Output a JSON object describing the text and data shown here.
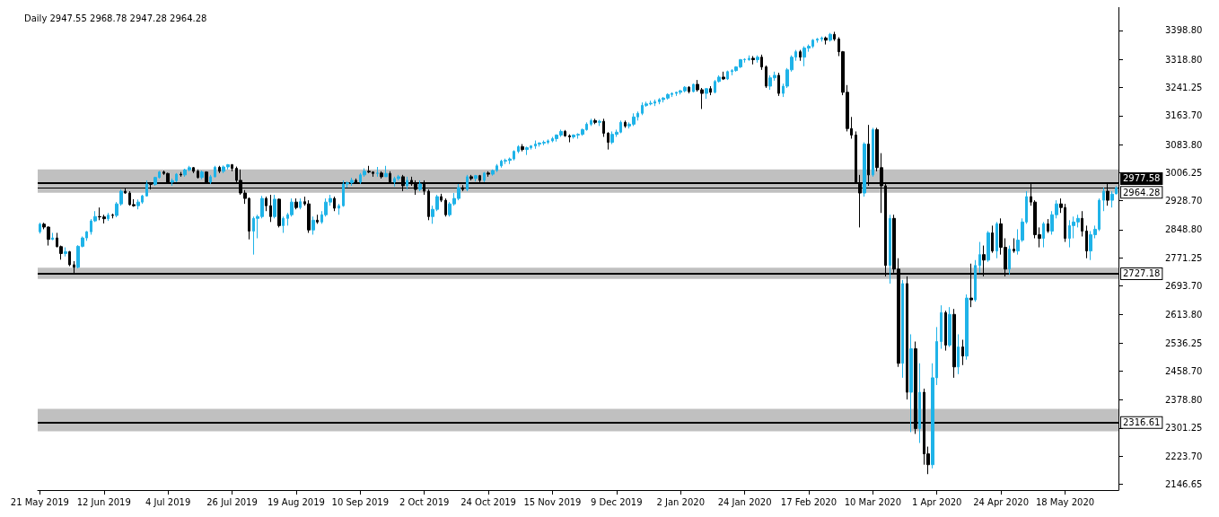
{
  "chart_data": {
    "type": "candlestick",
    "title": "Daily 2947.55 2968.78 2947.28 2964.28",
    "categories": [
      "21 May 2019",
      null,
      null,
      null,
      null,
      null,
      null,
      null,
      null,
      null,
      null,
      null,
      null,
      null,
      null,
      "12 Jun 2019",
      null,
      null,
      null,
      null,
      null,
      null,
      null,
      null,
      null,
      null,
      null,
      null,
      null,
      null,
      "4 Jul 2019",
      null,
      null,
      null,
      null,
      null,
      null,
      null,
      null,
      null,
      null,
      null,
      null,
      null,
      null,
      "26 Jul 2019",
      null,
      null,
      null,
      null,
      null,
      null,
      null,
      null,
      null,
      null,
      null,
      null,
      null,
      null,
      "19 Aug 2019",
      null,
      null,
      null,
      null,
      null,
      null,
      null,
      null,
      null,
      null,
      null,
      null,
      null,
      null,
      "10 Sep 2019",
      null,
      null,
      null,
      null,
      null,
      null,
      null,
      null,
      null,
      null,
      null,
      null,
      null,
      null,
      "2 Oct 2019",
      null,
      null,
      null,
      null,
      null,
      null,
      null,
      null,
      null,
      null,
      null,
      null,
      null,
      null,
      "24 Oct 2019",
      null,
      null,
      null,
      null,
      null,
      null,
      null,
      null,
      null,
      null,
      null,
      null,
      null,
      null,
      "15 Nov 2019",
      null,
      null,
      null,
      null,
      null,
      null,
      null,
      null,
      null,
      null,
      null,
      null,
      null,
      null,
      "9 Dec 2019",
      null,
      null,
      null,
      null,
      null,
      null,
      null,
      null,
      null,
      null,
      null,
      null,
      null,
      null,
      "2 Jan 2020",
      null,
      null,
      null,
      null,
      null,
      null,
      null,
      null,
      null,
      null,
      null,
      null,
      null,
      null,
      "24 Jan 2020",
      null,
      null,
      null,
      null,
      null,
      null,
      null,
      null,
      null,
      null,
      null,
      null,
      null,
      null,
      "17 Feb 2020",
      null,
      null,
      null,
      null,
      null,
      null,
      null,
      null,
      null,
      null,
      null,
      null,
      null,
      null,
      "10 Mar 2020",
      null,
      null,
      null,
      null,
      null,
      null,
      null,
      null,
      null,
      null,
      null,
      null,
      null,
      null,
      "1 Apr 2020",
      null,
      null,
      null,
      null,
      null,
      null,
      null,
      null,
      null,
      null,
      null,
      null,
      null,
      null,
      "24 Apr 2020",
      null,
      null,
      null,
      null,
      null,
      null,
      null,
      null,
      null,
      null,
      null,
      null,
      null,
      null,
      "18 May 2020",
      null,
      null,
      null,
      null,
      null,
      null,
      null,
      null,
      null,
      null,
      null,
      null
    ],
    "series": [
      {
        "colors": [
          "#1fb3e8",
          "#000000",
          "#000000",
          "#1fb3e8",
          "#000000",
          "#000000",
          "#1fb3e8",
          "#000000",
          "#000000",
          "#1fb3e8",
          "#1fb3e8",
          "#1fb3e8",
          "#1fb3e8",
          "#1fb3e8",
          "#000000",
          "#000000",
          "#1fb3e8",
          "#000000",
          "#1fb3e8",
          "#1fb3e8",
          "#000000",
          "#000000",
          "#000000",
          "#1fb3e8",
          "#1fb3e8",
          "#1fb3e8",
          "#000000",
          "#1fb3e8",
          "#1fb3e8",
          "#000000",
          "#000000",
          "#1fb3e8",
          "#1fb3e8",
          "#000000",
          "#1fb3e8",
          "#1fb3e8",
          "#000000",
          "#000000",
          "#1fb3e8",
          "#000000",
          "#1fb3e8",
          "#1fb3e8",
          "#000000",
          "#1fb3e8",
          "#1fb3e8",
          "#000000",
          "#000000",
          "#000000",
          "#000000",
          "#000000",
          "#1fb3e8",
          "#1fb3e8",
          "#1fb3e8",
          "#000000",
          "#000000",
          "#1fb3e8",
          "#000000",
          "#1fb3e8",
          "#1fb3e8",
          "#1fb3e8",
          "#000000",
          "#1fb3e8",
          "#000000",
          "#000000",
          "#1fb3e8",
          "#000000",
          "#1fb3e8",
          "#1fb3e8",
          "#1fb3e8",
          "#000000",
          "#1fb3e8",
          "#1fb3e8",
          "#1fb3e8",
          "#1fb3e8",
          "#000000",
          "#1fb3e8",
          "#1fb3e8",
          "#000000",
          "#000000",
          "#1fb3e8",
          "#000000",
          "#1fb3e8",
          "#000000",
          "#1fb3e8",
          "#1fb3e8",
          "#000000",
          "#1fb3e8",
          "#000000",
          "#000000",
          "#1fb3e8",
          "#000000",
          "#000000",
          "#1fb3e8",
          "#1fb3e8",
          "#000000",
          "#000000",
          "#1fb3e8",
          "#1fb3e8",
          "#1fb3e8",
          "#000000",
          "#1fb3e8",
          "#000000",
          "#1fb3e8",
          "#000000",
          "#1fb3e8",
          "#000000",
          "#1fb3e8",
          "#1fb3e8",
          "#1fb3e8",
          "#1fb3e8",
          "#1fb3e8",
          "#1fb3e8",
          "#1fb3e8",
          "#000000",
          "#1fb3e8",
          "#1fb3e8",
          "#1fb3e8",
          "#1fb3e8",
          "#1fb3e8",
          "#1fb3e8",
          "#1fb3e8",
          "#1fb3e8",
          "#1fb3e8",
          "#000000",
          "#000000",
          "#1fb3e8",
          "#1fb3e8",
          "#1fb3e8",
          "#1fb3e8",
          "#1fb3e8",
          "#000000",
          "#1fb3e8",
          "#000000",
          "#000000",
          "#1fb3e8",
          "#1fb3e8",
          "#1fb3e8",
          "#000000",
          "#1fb3e8",
          "#1fb3e8",
          "#1fb3e8",
          "#1fb3e8",
          "#1fb3e8",
          "#1fb3e8",
          "#1fb3e8",
          "#1fb3e8",
          "#1fb3e8",
          "#1fb3e8",
          "#1fb3e8",
          "#1fb3e8",
          "#1fb3e8",
          "#1fb3e8",
          "#000000",
          "#1fb3e8",
          "#000000",
          "#000000",
          "#1fb3e8",
          "#000000",
          "#1fb3e8",
          "#1fb3e8",
          "#000000",
          "#1fb3e8",
          "#1fb3e8",
          "#1fb3e8",
          "#1fb3e8",
          "#1fb3e8",
          "#1fb3e8",
          "#000000",
          "#1fb3e8",
          "#000000",
          "#000000",
          "#1fb3e8",
          "#1fb3e8",
          "#000000",
          "#1fb3e8",
          "#1fb3e8",
          "#1fb3e8",
          "#1fb3e8",
          "#000000",
          "#1fb3e8",
          "#1fb3e8",
          "#1fb3e8",
          "#1fb3e8",
          "#1fb3e8",
          "#000000",
          "#1fb3e8",
          "#000000",
          "#000000",
          "#000000",
          "#000000",
          "#000000",
          "#000000",
          "#000000",
          "#1fb3e8",
          "#000000",
          "#1fb3e8",
          "#000000",
          "#000000",
          "#000000",
          "#1fb3e8",
          "#000000",
          "#000000",
          "#1fb3e8",
          "#000000",
          "#1fb3e8",
          "#000000",
          "#1fb3e8",
          "#000000",
          "#000000",
          "#1fb3e8",
          "#1fb3e8",
          "#1fb3e8",
          "#000000",
          "#1fb3e8",
          "#000000",
          "#1fb3e8",
          "#000000",
          "#1fb3e8",
          "#000000",
          "#1fb3e8",
          "#1fb3e8",
          "#000000",
          "#1fb3e8",
          "#000000",
          "#1fb3e8",
          "#000000",
          "#000000",
          "#1fb3e8",
          "#000000",
          "#1fb3e8",
          "#1fb3e8",
          "#1fb3e8",
          "#000000",
          "#000000",
          "#000000",
          "#1fb3e8",
          "#000000",
          "#1fb3e8",
          "#1fb3e8",
          "#000000",
          "#000000",
          "#1fb3e8",
          "#1fb3e8",
          "#1fb3e8",
          "#000000",
          "#000000",
          "#1fb3e8",
          "#1fb3e8",
          "#1fb3e8",
          "#1fb3e8",
          "#000000",
          "#1fb3e8",
          "#1fb3e8"
        ],
        "ohlc": [
          [
            2843,
            2868,
            2838,
            2864
          ],
          [
            2864,
            2868,
            2850,
            2856
          ],
          [
            2856,
            2858,
            2805,
            2822
          ],
          [
            2822,
            2840,
            2820,
            2826
          ],
          [
            2826,
            2840,
            2800,
            2802
          ],
          [
            2802,
            2805,
            2766,
            2783
          ],
          [
            2783,
            2800,
            2775,
            2788
          ],
          [
            2788,
            2790,
            2748,
            2752
          ],
          [
            2752,
            2762,
            2728,
            2745
          ],
          [
            2745,
            2806,
            2742,
            2803
          ],
          [
            2803,
            2830,
            2800,
            2826
          ],
          [
            2826,
            2845,
            2818,
            2843
          ],
          [
            2843,
            2878,
            2835,
            2873
          ],
          [
            2873,
            2900,
            2870,
            2885
          ],
          [
            2885,
            2910,
            2875,
            2884
          ],
          [
            2884,
            2890,
            2866,
            2879
          ],
          [
            2879,
            2895,
            2873,
            2889
          ],
          [
            2889,
            2893,
            2880,
            2888
          ],
          [
            2888,
            2925,
            2883,
            2920
          ],
          [
            2920,
            2960,
            2915,
            2955
          ],
          [
            2955,
            2964,
            2948,
            2950
          ],
          [
            2950,
            2955,
            2915,
            2918
          ],
          [
            2918,
            2933,
            2912,
            2915
          ],
          [
            2915,
            2932,
            2905,
            2925
          ],
          [
            2925,
            2945,
            2920,
            2942
          ],
          [
            2942,
            2985,
            2940,
            2975
          ],
          [
            2975,
            2980,
            2960,
            2974
          ],
          [
            2974,
            2995,
            2970,
            2993
          ],
          [
            2993,
            3011,
            2990,
            3008
          ],
          [
            3008,
            3012,
            3000,
            3004
          ],
          [
            3004,
            3006,
            2975,
            2980
          ],
          [
            2980,
            2990,
            2970,
            2984
          ],
          [
            2984,
            3005,
            2980,
            3002
          ],
          [
            3002,
            3008,
            2995,
            3000
          ],
          [
            3000,
            3017,
            2995,
            3014
          ],
          [
            3014,
            3025,
            3010,
            3020
          ],
          [
            3020,
            3022,
            3005,
            3010
          ],
          [
            3010,
            3015,
            2990,
            2993
          ],
          [
            2993,
            3012,
            2988,
            3008
          ],
          [
            3008,
            3010,
            2978,
            2980
          ],
          [
            2980,
            3000,
            2975,
            2995
          ],
          [
            2995,
            3025,
            2993,
            3021
          ],
          [
            3021,
            3025,
            3005,
            3010
          ],
          [
            3010,
            3026,
            3005,
            3022
          ],
          [
            3022,
            3030,
            3015,
            3028
          ],
          [
            3028,
            3030,
            3010,
            3018
          ],
          [
            3018,
            3023,
            2975,
            2985
          ],
          [
            2985,
            3015,
            2945,
            2950
          ],
          [
            2950,
            2958,
            2920,
            2935
          ],
          [
            2935,
            2938,
            2822,
            2845
          ],
          [
            2845,
            2885,
            2780,
            2880
          ],
          [
            2880,
            2890,
            2825,
            2885
          ],
          [
            2885,
            2942,
            2880,
            2935
          ],
          [
            2935,
            2940,
            2900,
            2915
          ],
          [
            2915,
            2945,
            2870,
            2885
          ],
          [
            2885,
            2945,
            2880,
            2933
          ],
          [
            2933,
            2935,
            2855,
            2860
          ],
          [
            2860,
            2885,
            2840,
            2880
          ],
          [
            2880,
            2895,
            2860,
            2890
          ],
          [
            2890,
            2935,
            2885,
            2925
          ],
          [
            2925,
            2935,
            2905,
            2910
          ],
          [
            2910,
            2935,
            2905,
            2926
          ],
          [
            2926,
            2940,
            2915,
            2920
          ],
          [
            2920,
            2930,
            2840,
            2848
          ],
          [
            2848,
            2885,
            2835,
            2875
          ],
          [
            2875,
            2890,
            2865,
            2870
          ],
          [
            2870,
            2900,
            2865,
            2890
          ],
          [
            2890,
            2935,
            2885,
            2925
          ],
          [
            2925,
            2945,
            2915,
            2935
          ],
          [
            2935,
            2940,
            2900,
            2908
          ],
          [
            2908,
            2920,
            2890,
            2915
          ],
          [
            2915,
            2985,
            2912,
            2975
          ],
          [
            2975,
            2982,
            2965,
            2978
          ],
          [
            2978,
            2992,
            2970,
            2985
          ],
          [
            2985,
            2990,
            2975,
            2980
          ],
          [
            2980,
            3005,
            2975,
            3000
          ],
          [
            3000,
            3018,
            2995,
            3010
          ],
          [
            3010,
            3025,
            3005,
            3008
          ],
          [
            3008,
            3010,
            2995,
            3004
          ],
          [
            3004,
            3022,
            2995,
            3005
          ],
          [
            3005,
            3010,
            2990,
            2995
          ],
          [
            2995,
            3025,
            2995,
            3004
          ],
          [
            3004,
            3010,
            2975,
            2980
          ],
          [
            2980,
            2995,
            2968,
            2990
          ],
          [
            2990,
            3000,
            2985,
            2995
          ],
          [
            2995,
            3000,
            2955,
            2970
          ],
          [
            2970,
            2995,
            2960,
            2985
          ],
          [
            2985,
            2995,
            2970,
            2975
          ],
          [
            2975,
            2985,
            2945,
            2960
          ],
          [
            2960,
            2985,
            2955,
            2975
          ],
          [
            2975,
            2985,
            2945,
            2955
          ],
          [
            2955,
            2960,
            2875,
            2885
          ],
          [
            2885,
            2915,
            2865,
            2905
          ],
          [
            2905,
            2945,
            2900,
            2940
          ],
          [
            2940,
            2948,
            2925,
            2930
          ],
          [
            2930,
            2935,
            2885,
            2890
          ],
          [
            2890,
            2925,
            2885,
            2920
          ],
          [
            2920,
            2950,
            2915,
            2935
          ],
          [
            2935,
            2975,
            2930,
            2965
          ],
          [
            2965,
            2972,
            2955,
            2960
          ],
          [
            2960,
            3000,
            2955,
            2995
          ],
          [
            2995,
            3000,
            2985,
            2990
          ],
          [
            2990,
            3000,
            2982,
            2998
          ],
          [
            2998,
            3000,
            2980,
            2985
          ],
          [
            2985,
            3008,
            2980,
            3005
          ],
          [
            3005,
            3010,
            2995,
            3002
          ],
          [
            3002,
            3015,
            2998,
            3012
          ],
          [
            3012,
            3030,
            3008,
            3025
          ],
          [
            3025,
            3042,
            3020,
            3038
          ],
          [
            3038,
            3045,
            3030,
            3040
          ],
          [
            3040,
            3048,
            3030,
            3044
          ],
          [
            3044,
            3068,
            3040,
            3065
          ],
          [
            3065,
            3082,
            3060,
            3078
          ],
          [
            3078,
            3085,
            3065,
            3070
          ],
          [
            3070,
            3078,
            3055,
            3075
          ],
          [
            3075,
            3082,
            3070,
            3080
          ],
          [
            3080,
            3095,
            3072,
            3085
          ],
          [
            3085,
            3090,
            3078,
            3088
          ],
          [
            3088,
            3095,
            3082,
            3090
          ],
          [
            3090,
            3098,
            3085,
            3094
          ],
          [
            3094,
            3105,
            3090,
            3100
          ],
          [
            3100,
            3112,
            3092,
            3110
          ],
          [
            3110,
            3125,
            3105,
            3120
          ],
          [
            3120,
            3124,
            3105,
            3108
          ],
          [
            3108,
            3112,
            3090,
            3105
          ],
          [
            3105,
            3112,
            3100,
            3110
          ],
          [
            3110,
            3115,
            3100,
            3112
          ],
          [
            3112,
            3128,
            3108,
            3125
          ],
          [
            3125,
            3145,
            3122,
            3140
          ],
          [
            3140,
            3155,
            3135,
            3150
          ],
          [
            3150,
            3155,
            3140,
            3145
          ],
          [
            3145,
            3152,
            3135,
            3148
          ],
          [
            3148,
            3155,
            3105,
            3115
          ],
          [
            3115,
            3118,
            3070,
            3090
          ],
          [
            3090,
            3120,
            3085,
            3112
          ],
          [
            3112,
            3125,
            3105,
            3118
          ],
          [
            3118,
            3150,
            3115,
            3145
          ],
          [
            3145,
            3150,
            3130,
            3135
          ],
          [
            3135,
            3145,
            3128,
            3140
          ],
          [
            3140,
            3170,
            3135,
            3160
          ],
          [
            3160,
            3175,
            3150,
            3170
          ],
          [
            3170,
            3200,
            3165,
            3192
          ],
          [
            3192,
            3202,
            3188,
            3196
          ],
          [
            3196,
            3205,
            3192,
            3198
          ],
          [
            3198,
            3208,
            3190,
            3202
          ],
          [
            3202,
            3212,
            3195,
            3208
          ],
          [
            3208,
            3215,
            3200,
            3212
          ],
          [
            3212,
            3225,
            3208,
            3222
          ],
          [
            3222,
            3228,
            3215,
            3225
          ],
          [
            3225,
            3230,
            3218,
            3228
          ],
          [
            3228,
            3235,
            3222,
            3232
          ],
          [
            3232,
            3245,
            3228,
            3242
          ],
          [
            3242,
            3245,
            3225,
            3230
          ],
          [
            3230,
            3252,
            3228,
            3250
          ],
          [
            3250,
            3262,
            3230,
            3235
          ],
          [
            3235,
            3240,
            3182,
            3225
          ],
          [
            3225,
            3240,
            3210,
            3238
          ],
          [
            3238,
            3245,
            3220,
            3228
          ],
          [
            3228,
            3262,
            3225,
            3258
          ],
          [
            3258,
            3275,
            3255,
            3270
          ],
          [
            3270,
            3285,
            3262,
            3265
          ],
          [
            3265,
            3288,
            3262,
            3285
          ],
          [
            3285,
            3292,
            3275,
            3288
          ],
          [
            3288,
            3300,
            3285,
            3298
          ],
          [
            3298,
            3320,
            3295,
            3318
          ],
          [
            3318,
            3322,
            3310,
            3319
          ],
          [
            3318,
            3330,
            3315,
            3322
          ],
          [
            3322,
            3328,
            3305,
            3318
          ],
          [
            3318,
            3330,
            3310,
            3325
          ],
          [
            3325,
            3332,
            3290,
            3298
          ],
          [
            3298,
            3302,
            3240,
            3245
          ],
          [
            3245,
            3275,
            3235,
            3268
          ],
          [
            3268,
            3285,
            3260,
            3275
          ],
          [
            3275,
            3282,
            3218,
            3225
          ],
          [
            3225,
            3252,
            3215,
            3245
          ],
          [
            3245,
            3295,
            3240,
            3290
          ],
          [
            3290,
            3330,
            3285,
            3325
          ],
          [
            3325,
            3345,
            3315,
            3340
          ],
          [
            3340,
            3345,
            3315,
            3325
          ],
          [
            3325,
            3355,
            3300,
            3350
          ],
          [
            3350,
            3360,
            3340,
            3355
          ],
          [
            3355,
            3375,
            3350,
            3372
          ],
          [
            3372,
            3378,
            3365,
            3375
          ],
          [
            3375,
            3382,
            3368,
            3378
          ],
          [
            3378,
            3382,
            3360,
            3372
          ],
          [
            3372,
            3392,
            3368,
            3388
          ],
          [
            3388,
            3395,
            3370,
            3375
          ],
          [
            3375,
            3380,
            3328,
            3340
          ],
          [
            3340,
            3342,
            3220,
            3228
          ],
          [
            3228,
            3248,
            3120,
            3128
          ],
          [
            3128,
            3160,
            3100,
            3110
          ],
          [
            3110,
            3120,
            2975,
            2978
          ],
          [
            2978,
            3000,
            2855,
            2950
          ],
          [
            2950,
            3090,
            2940,
            3085
          ],
          [
            3085,
            3138,
            2970,
            3000
          ],
          [
            3000,
            3130,
            2995,
            3125
          ],
          [
            3125,
            3130,
            3010,
            3020
          ],
          [
            3020,
            3060,
            2895,
            2970
          ],
          [
            2970,
            2980,
            2720,
            2750
          ],
          [
            2750,
            2890,
            2700,
            2880
          ],
          [
            2880,
            2890,
            2730,
            2740
          ],
          [
            2740,
            2770,
            2470,
            2480
          ],
          [
            2480,
            2710,
            2440,
            2700
          ],
          [
            2700,
            2720,
            2380,
            2400
          ],
          [
            2400,
            2560,
            2290,
            2520
          ],
          [
            2520,
            2540,
            2285,
            2300
          ],
          [
            2300,
            2480,
            2260,
            2400
          ],
          [
            2400,
            2410,
            2200,
            2230
          ],
          [
            2230,
            2250,
            2174,
            2200
          ],
          [
            2200,
            2480,
            2190,
            2440
          ],
          [
            2440,
            2580,
            2420,
            2540
          ],
          [
            2540,
            2640,
            2520,
            2620
          ],
          [
            2620,
            2625,
            2515,
            2530
          ],
          [
            2530,
            2635,
            2525,
            2615
          ],
          [
            2615,
            2630,
            2440,
            2470
          ],
          [
            2470,
            2560,
            2450,
            2525
          ],
          [
            2525,
            2545,
            2475,
            2500
          ],
          [
            2500,
            2670,
            2490,
            2660
          ],
          [
            2660,
            2755,
            2635,
            2655
          ],
          [
            2655,
            2765,
            2650,
            2750
          ],
          [
            2750,
            2815,
            2730,
            2780
          ],
          [
            2780,
            2805,
            2720,
            2765
          ],
          [
            2765,
            2845,
            2760,
            2840
          ],
          [
            2840,
            2860,
            2785,
            2790
          ],
          [
            2790,
            2870,
            2770,
            2865
          ],
          [
            2865,
            2880,
            2780,
            2800
          ],
          [
            2800,
            2825,
            2720,
            2740
          ],
          [
            2740,
            2805,
            2725,
            2795
          ],
          [
            2795,
            2825,
            2785,
            2790
          ],
          [
            2790,
            2850,
            2780,
            2820
          ],
          [
            2820,
            2880,
            2815,
            2870
          ],
          [
            2870,
            2955,
            2865,
            2940
          ],
          [
            2940,
            2975,
            2915,
            2925
          ],
          [
            2925,
            2930,
            2825,
            2835
          ],
          [
            2835,
            2855,
            2800,
            2825
          ],
          [
            2825,
            2870,
            2800,
            2865
          ],
          [
            2865,
            2878,
            2840,
            2845
          ],
          [
            2845,
            2900,
            2835,
            2890
          ],
          [
            2890,
            2930,
            2880,
            2920
          ],
          [
            2920,
            2935,
            2895,
            2910
          ],
          [
            2910,
            2920,
            2815,
            2825
          ],
          [
            2825,
            2875,
            2800,
            2860
          ],
          [
            2860,
            2885,
            2825,
            2870
          ],
          [
            2870,
            2890,
            2855,
            2880
          ],
          [
            2880,
            2900,
            2830,
            2845
          ],
          [
            2845,
            2860,
            2770,
            2790
          ],
          [
            2790,
            2845,
            2765,
            2835
          ],
          [
            2835,
            2860,
            2825,
            2850
          ],
          [
            2850,
            2935,
            2845,
            2930
          ],
          [
            2930,
            2965,
            2900,
            2955
          ],
          [
            2955,
            2975,
            2915,
            2930
          ],
          [
            2930,
            2955,
            2910,
            2947
          ],
          [
            2947.55,
            2968.78,
            2947.28,
            2964.28
          ]
        ]
      }
    ],
    "ylim": [
      2130,
      3463
    ],
    "yticks": [
      {
        "value": 2146.65,
        "label": "2146.65"
      },
      {
        "value": 2223.7,
        "label": "2223.70"
      },
      {
        "value": 2301.25,
        "label": "2301.25"
      },
      {
        "value": 2378.8,
        "label": "2378.80"
      },
      {
        "value": 2458.7,
        "label": "2458.70"
      },
      {
        "value": 2536.25,
        "label": "2536.25"
      },
      {
        "value": 2613.8,
        "label": "2613.80"
      },
      {
        "value": 2693.7,
        "label": "2693.70"
      },
      {
        "value": 2771.25,
        "label": "2771.25"
      },
      {
        "value": 2848.8,
        "label": "2848.80"
      },
      {
        "value": 2928.7,
        "label": "2928.70"
      },
      {
        "value": 3006.25,
        "label": "3006.25"
      },
      {
        "value": 3083.8,
        "label": "3083.80"
      },
      {
        "value": 3163.7,
        "label": "3163.70"
      },
      {
        "value": 3241.25,
        "label": "3241.25"
      },
      {
        "value": 3318.8,
        "label": "3318.80"
      },
      {
        "value": 3398.8,
        "label": "3398.80"
      }
    ],
    "bands": [
      {
        "axis": "y",
        "from": 2951,
        "to": 3015,
        "color": "#c0c0c0"
      },
      {
        "axis": "y",
        "from": 2713,
        "to": 2744,
        "color": "#c0c0c0"
      },
      {
        "axis": "y",
        "from": 2292,
        "to": 2354,
        "color": "#c0c0c0"
      }
    ],
    "ref_lines": [
      {
        "axis": "y",
        "value": 2977.58,
        "label": "2977.58",
        "color": "#000000"
      },
      {
        "axis": "y",
        "value": 2964.28,
        "label": "2964.28",
        "color": "#000000"
      },
      {
        "axis": "y",
        "value": 2727.18,
        "label": "2727.18",
        "color": "#000000"
      },
      {
        "axis": "y",
        "value": 2316.61,
        "label": "2316.61",
        "color": "#000000"
      }
    ],
    "grid": false
  }
}
